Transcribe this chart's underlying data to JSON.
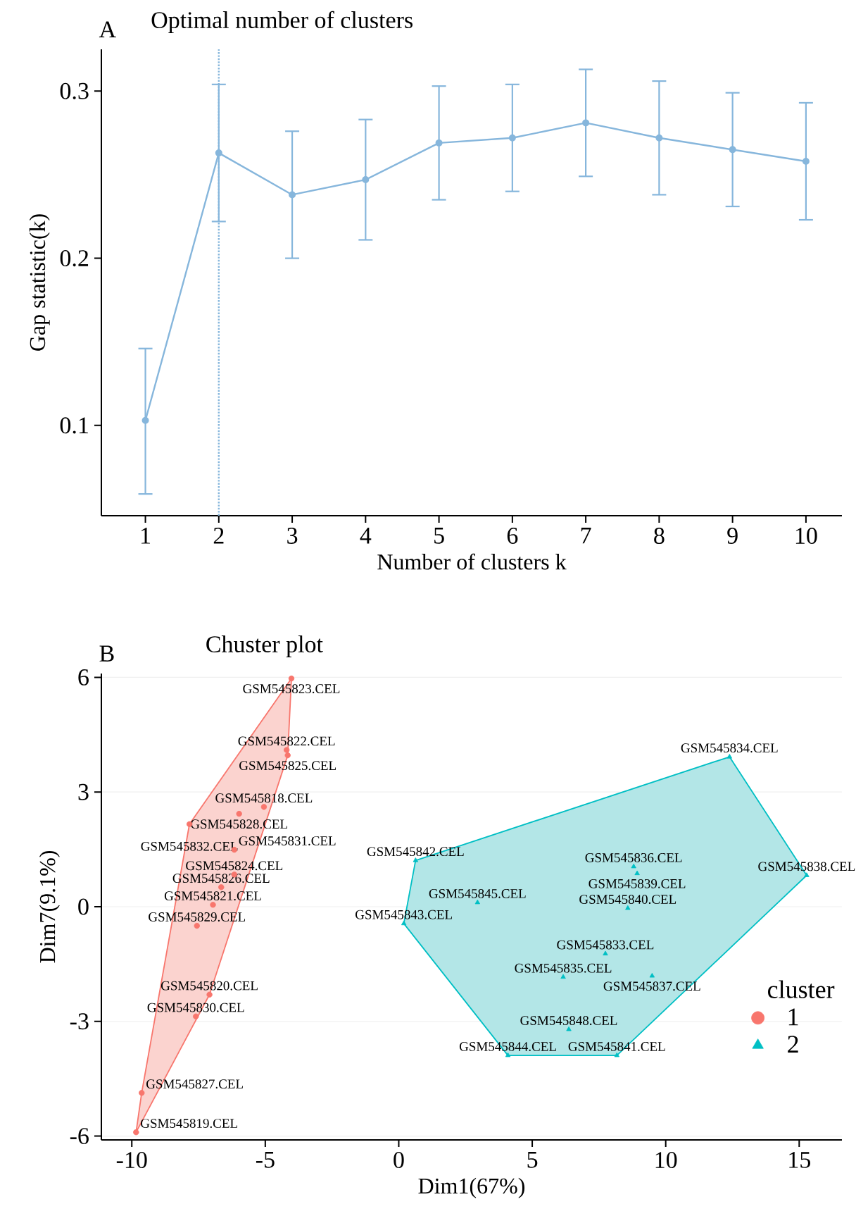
{
  "chart_data": [
    {
      "type": "line",
      "title": "Optimal number of clusters",
      "xlabel": "Number of clusters k",
      "ylabel": "Gap statistic(k)",
      "annotations": [
        "A"
      ],
      "x": [
        1,
        2,
        3,
        4,
        5,
        6,
        7,
        8,
        9,
        10
      ],
      "series": [
        {
          "color": "#86b6dc",
          "values": [
            0.103,
            0.263,
            0.238,
            0.247,
            0.269,
            0.272,
            0.281,
            0.272,
            0.265,
            0.258
          ],
          "errors": [
            [
              0.059,
              0.146
            ],
            [
              0.222,
              0.304
            ],
            [
              0.2,
              0.276
            ],
            [
              0.211,
              0.283
            ],
            [
              0.235,
              0.303
            ],
            [
              0.24,
              0.304
            ],
            [
              0.249,
              0.313
            ],
            [
              0.238,
              0.306
            ],
            [
              0.231,
              0.299
            ],
            [
              0.223,
              0.293
            ]
          ]
        }
      ],
      "marker": "circle",
      "line_style": "solid",
      "xlim": [
        0.4,
        10.49
      ],
      "ylim": [
        0.046,
        0.325
      ],
      "xticks": [
        1,
        2,
        3,
        4,
        5,
        6,
        7,
        8,
        9,
        10
      ],
      "yticks": [
        0.1,
        0.2,
        0.3
      ],
      "ref_lines": [
        {
          "axis": "x",
          "value": 2,
          "line_style": "dotted",
          "color": "#86b6dc"
        }
      ]
    },
    {
      "type": "scatter",
      "title": "Chuster plot",
      "xlabel": "Dim1(67%)",
      "ylabel": "Dim7(9.1%)",
      "legend_title": "cluster",
      "legend": "right",
      "grid": "y",
      "series": [
        {
          "type": "area",
          "color": "#fbd3cf",
          "x": [
            -4.02,
            -4.16,
            -7.09,
            -9.84,
            -9.63,
            -7.84
          ],
          "values": [
            5.97,
            3.96,
            -2.3,
            -5.9,
            -4.87,
            2.16
          ]
        },
        {
          "name": "1",
          "color": "#f8766d",
          "marker": "circle",
          "x": [
            -4.02,
            -4.2,
            -4.16,
            -5.05,
            -5.98,
            -7.84,
            -6.16,
            -6.16,
            -6.65,
            -6.96,
            -7.56,
            -7.09,
            -7.6,
            -9.63,
            -9.84
          ],
          "values": [
            5.97,
            4.1,
            3.96,
            2.61,
            2.43,
            2.16,
            1.49,
            0.84,
            0.51,
            0.05,
            -0.5,
            -2.3,
            -2.87,
            -4.87,
            -5.9
          ]
        },
        {
          "type": "area",
          "color": "#b3e6e7",
          "x": [
            12.39,
            15.28,
            8.17,
            4.09,
            0.19,
            0.63
          ],
          "values": [
            3.92,
            0.82,
            -3.89,
            -3.89,
            -0.44,
            1.21
          ]
        },
        {
          "name": "2",
          "color": "#00bfc4",
          "marker": "triangle",
          "x": [
            12.39,
            0.63,
            8.8,
            8.93,
            15.28,
            2.95,
            8.58,
            0.19,
            7.74,
            6.16,
            9.49,
            6.37,
            4.09,
            8.17
          ],
          "values": [
            3.92,
            1.21,
            1.05,
            0.87,
            0.82,
            0.11,
            -0.04,
            -0.44,
            -1.23,
            -1.84,
            -1.81,
            -3.21,
            -3.89,
            -3.89
          ]
        }
      ],
      "annotations": [
        "B",
        {
          "text": "GSM545823.CEL",
          "x": -4.02,
          "y": 5.97
        },
        {
          "text": "GSM545822.CEL",
          "x": -4.2,
          "y": 4.1
        },
        {
          "text": "GSM545825.CEL",
          "x": -4.16,
          "y": 3.96
        },
        {
          "text": "GSM545818.CEL",
          "x": -5.05,
          "y": 2.61
        },
        {
          "text": "GSM545828.CEL",
          "x": -5.98,
          "y": 2.43
        },
        {
          "text": "GSM545832.CEL",
          "x": -7.84,
          "y": 2.16
        },
        {
          "text": "GSM545831.CEL",
          "x": -6.16,
          "y": 1.49
        },
        {
          "text": "GSM545824.CEL",
          "x": -6.16,
          "y": 0.84
        },
        {
          "text": "GSM545826.CEL",
          "x": -6.65,
          "y": 0.51
        },
        {
          "text": "GSM545821.CEL",
          "x": -6.96,
          "y": 0.05
        },
        {
          "text": "GSM545829.CEL",
          "x": -7.56,
          "y": -0.5
        },
        {
          "text": "GSM545820.CEL",
          "x": -7.09,
          "y": -2.3
        },
        {
          "text": "GSM545830.CEL",
          "x": -7.6,
          "y": -2.87
        },
        {
          "text": "GSM545827.CEL",
          "x": -9.63,
          "y": -4.87
        },
        {
          "text": "GSM545819.CEL",
          "x": -9.84,
          "y": -5.9
        },
        {
          "text": "GSM545834.CEL",
          "x": 12.39,
          "y": 3.92
        },
        {
          "text": "GSM545842.CEL",
          "x": 0.63,
          "y": 1.21
        },
        {
          "text": "GSM545836.CEL",
          "x": 8.8,
          "y": 1.05
        },
        {
          "text": "GSM545839.CEL",
          "x": 8.93,
          "y": 0.87
        },
        {
          "text": "GSM545838.CEL",
          "x": 15.28,
          "y": 0.82
        },
        {
          "text": "GSM545845.CEL",
          "x": 2.95,
          "y": 0.11
        },
        {
          "text": "GSM545840.CEL",
          "x": 8.58,
          "y": -0.04
        },
        {
          "text": "GSM545843.CEL",
          "x": 0.19,
          "y": -0.44
        },
        {
          "text": "GSM545833.CEL",
          "x": 7.74,
          "y": -1.23
        },
        {
          "text": "GSM545835.CEL",
          "x": 6.16,
          "y": -1.84
        },
        {
          "text": "GSM545837.CEL",
          "x": 9.49,
          "y": -1.81
        },
        {
          "text": "GSM545848.CEL",
          "x": 6.37,
          "y": -3.21
        },
        {
          "text": "GSM545844.CEL",
          "x": 4.09,
          "y": -3.89
        },
        {
          "text": "GSM545841.CEL",
          "x": 8.17,
          "y": -3.89
        }
      ],
      "xlim": [
        -11.14,
        16.6
      ],
      "ylim": [
        -6.1,
        6.1
      ],
      "xticks": [
        -10,
        -5,
        0,
        5,
        10,
        15
      ],
      "yticks": [
        -6,
        -3,
        0,
        3,
        6
      ]
    }
  ]
}
